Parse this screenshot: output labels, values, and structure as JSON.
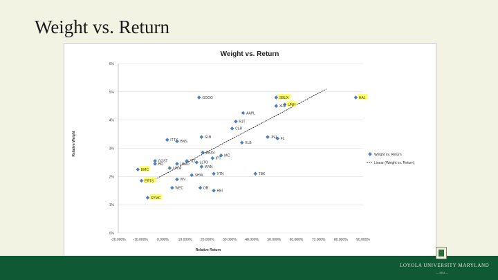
{
  "slide": {
    "title": "Weight vs. Return",
    "footer": "Loyola University Maryland",
    "footer_sub": "— 1852 —"
  },
  "colors": {
    "background": "#f3f3e3",
    "footer_bar": "#0f5a34",
    "marker": "#4f81bd",
    "highlight": "#ffff66",
    "trendline": "#000000"
  },
  "chart_data": {
    "type": "scatter",
    "title": "Weight vs. Return",
    "xlabel": "Relative Return",
    "ylabel": "Relative Weight",
    "xlim": [
      -20,
      80
    ],
    "ylim": [
      0,
      6
    ],
    "xticks": [
      "-20.000%",
      "-10.000%",
      "0.000%",
      "10.000%",
      "20.000%",
      "30.000%",
      "40.000%",
      "50.000%",
      "60.000%",
      "70.000%",
      "80.000%",
      "90.000%"
    ],
    "yticks": [
      "0%",
      "1%",
      "2%",
      "3%",
      "4%",
      "5%",
      "6%"
    ],
    "grid": "horizontal",
    "legend_position": "right",
    "legend": [
      "Weight vs. Return",
      "Linear (Weight vs. Return)"
    ],
    "trendline": {
      "x": [
        -5,
        65
      ],
      "y": [
        1.9,
        5.1
      ]
    },
    "points": [
      {
        "label": "GOOG",
        "x": 13.0,
        "y": 4.8,
        "highlight": false
      },
      {
        "label": "SBUX",
        "x": 44.5,
        "y": 4.8,
        "highlight": true
      },
      {
        "label": "UNH",
        "x": 48.0,
        "y": 4.55,
        "highlight": true
      },
      {
        "label": "HAL",
        "x": 77.0,
        "y": 4.8,
        "highlight": true
      },
      {
        "label": "XLE",
        "x": 44.5,
        "y": 4.5,
        "highlight": false
      },
      {
        "label": "AAPL",
        "x": 31.0,
        "y": 4.25,
        "highlight": false
      },
      {
        "label": "RJT",
        "x": 28.0,
        "y": 3.95,
        "highlight": false
      },
      {
        "label": "CLR",
        "x": 26.5,
        "y": 3.7,
        "highlight": false
      },
      {
        "label": "SLB",
        "x": 14.0,
        "y": 3.4,
        "highlight": false
      },
      {
        "label": "ITTX",
        "x": 0.0,
        "y": 3.3,
        "highlight": false
      },
      {
        "label": "BNS",
        "x": 4.0,
        "y": 3.25,
        "highlight": false
      },
      {
        "label": "JNJ",
        "x": 41.0,
        "y": 3.4,
        "highlight": false
      },
      {
        "label": "FL",
        "x": 45.0,
        "y": 3.35,
        "highlight": false
      },
      {
        "label": "XLB",
        "x": 30.5,
        "y": 3.2,
        "highlight": false
      },
      {
        "label": "BEAV",
        "x": 14.5,
        "y": 2.85,
        "highlight": false
      },
      {
        "label": "IAC",
        "x": 22.0,
        "y": 2.75,
        "highlight": false
      },
      {
        "label": "IPT",
        "x": 18.5,
        "y": 2.65,
        "highlight": false
      },
      {
        "label": "COST",
        "x": -5.0,
        "y": 2.55,
        "highlight": false
      },
      {
        "label": "TLT",
        "x": 8.0,
        "y": 2.55,
        "highlight": false
      },
      {
        "label": "LLTO",
        "x": 12.0,
        "y": 2.5,
        "highlight": false
      },
      {
        "label": "HD",
        "x": -5.0,
        "y": 2.45,
        "highlight": false
      },
      {
        "label": "LBRD",
        "x": 4.0,
        "y": 2.45,
        "highlight": false
      },
      {
        "label": "WYN",
        "x": 14.0,
        "y": 2.35,
        "highlight": false
      },
      {
        "label": "LPLA",
        "x": 1.0,
        "y": 2.3,
        "highlight": false
      },
      {
        "label": "EMC",
        "x": -12.0,
        "y": 2.25,
        "highlight": true
      },
      {
        "label": "XTN",
        "x": 19.0,
        "y": 2.1,
        "highlight": false
      },
      {
        "label": "TBK",
        "x": 36.0,
        "y": 2.1,
        "highlight": false
      },
      {
        "label": "SHW",
        "x": 10.0,
        "y": 2.05,
        "highlight": false
      },
      {
        "label": "WV",
        "x": 4.0,
        "y": 1.9,
        "highlight": false
      },
      {
        "label": "ERTS",
        "x": -10.5,
        "y": 1.85,
        "highlight": true
      },
      {
        "label": "WEC",
        "x": 2.0,
        "y": 1.6,
        "highlight": false
      },
      {
        "label": "DB",
        "x": 13.5,
        "y": 1.6,
        "highlight": false
      },
      {
        "label": "HBI",
        "x": 19.0,
        "y": 1.5,
        "highlight": false
      },
      {
        "label": "SYMC",
        "x": -8.0,
        "y": 1.25,
        "highlight": true
      }
    ]
  }
}
